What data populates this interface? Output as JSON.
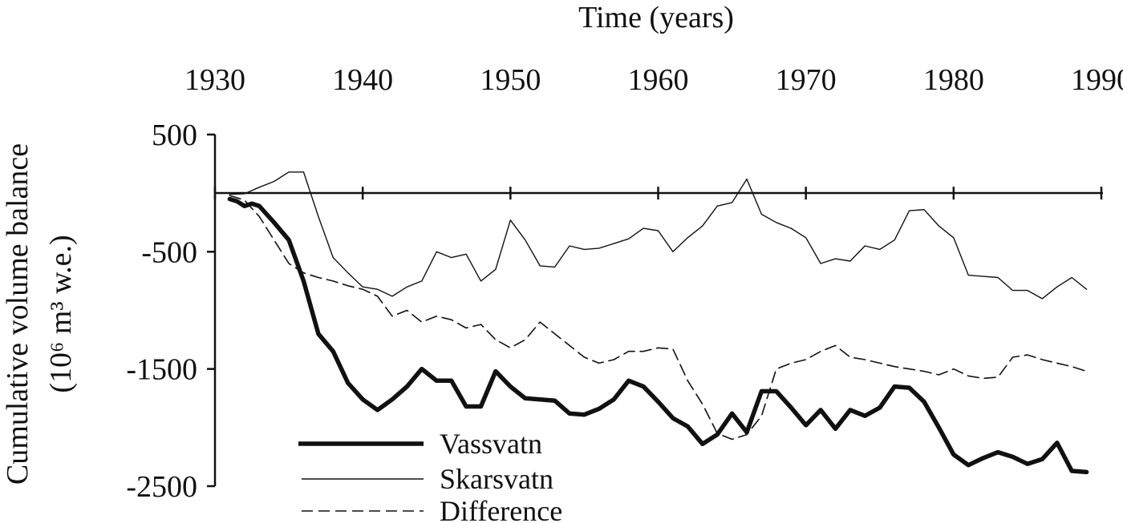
{
  "chart_data": {
    "type": "line",
    "xlabel": "Time (years)",
    "ylabel": "Cumulative volume balance",
    "ylabel_units": "(10⁶ m³ w.e.)",
    "xlim": [
      1930,
      1990
    ],
    "ylim": [
      -2500,
      500
    ],
    "x_ticks": [
      "1930",
      "1940",
      "1950",
      "1960",
      "1970",
      "1980",
      "1990"
    ],
    "y_ticks": [
      "500",
      "-500",
      "-1500",
      "-2500"
    ],
    "x_tick_values": [
      1930,
      1940,
      1950,
      1960,
      1970,
      1980,
      1990
    ],
    "y_tick_values": [
      500,
      -500,
      -1500,
      -2500
    ],
    "legend_position": "bottom-left",
    "colors": {
      "line": "#111111"
    },
    "series": [
      {
        "name": "Vassvatn",
        "style": "thick",
        "x": [
          1931,
          1931.5,
          1932,
          1932.5,
          1933,
          1934,
          1935,
          1936,
          1937,
          1938,
          1939,
          1940,
          1941,
          1942,
          1943,
          1944,
          1945,
          1946,
          1947,
          1948,
          1949,
          1950,
          1951,
          1952,
          1953,
          1954,
          1955,
          1956,
          1957,
          1958,
          1959,
          1960,
          1961,
          1962,
          1963,
          1964,
          1965,
          1966,
          1967,
          1968,
          1969,
          1970,
          1971,
          1972,
          1973,
          1974,
          1975,
          1976,
          1977,
          1978,
          1979,
          1980,
          1981,
          1982,
          1983,
          1984,
          1985,
          1986,
          1987,
          1988,
          1989
        ],
        "values": [
          -50,
          -70,
          -110,
          -90,
          -110,
          -250,
          -400,
          -750,
          -1200,
          -1350,
          -1620,
          -1760,
          -1850,
          -1760,
          -1650,
          -1500,
          -1600,
          -1600,
          -1820,
          -1820,
          -1520,
          -1650,
          -1750,
          -1760,
          -1770,
          -1880,
          -1890,
          -1840,
          -1760,
          -1600,
          -1650,
          -1780,
          -1920,
          -1990,
          -2140,
          -2060,
          -1880,
          -2040,
          -1690,
          -1690,
          -1830,
          -1980,
          -1850,
          -2010,
          -1850,
          -1900,
          -1830,
          -1650,
          -1660,
          -1780,
          -2000,
          -2230,
          -2320,
          -2260,
          -2210,
          -2250,
          -2310,
          -2270,
          -2130,
          -2370,
          -2380
        ]
      },
      {
        "name": "Skarsvatn",
        "style": "thin",
        "x": [
          1931,
          1932,
          1933,
          1934,
          1935,
          1936,
          1937,
          1938,
          1939,
          1940,
          1941,
          1942,
          1943,
          1944,
          1945,
          1946,
          1947,
          1948,
          1949,
          1950,
          1951,
          1952,
          1953,
          1954,
          1955,
          1956,
          1957,
          1958,
          1959,
          1960,
          1961,
          1962,
          1963,
          1964,
          1965,
          1966,
          1967,
          1968,
          1969,
          1970,
          1971,
          1972,
          1973,
          1974,
          1975,
          1976,
          1977,
          1978,
          1979,
          1980,
          1981,
          1982,
          1983,
          1984,
          1985,
          1986,
          1987,
          1988,
          1989
        ],
        "values": [
          -10,
          -5,
          50,
          100,
          180,
          180,
          -200,
          -550,
          -680,
          -800,
          -820,
          -880,
          -800,
          -750,
          -500,
          -550,
          -520,
          -750,
          -650,
          -230,
          -400,
          -620,
          -630,
          -450,
          -480,
          -470,
          -430,
          -390,
          -300,
          -320,
          -500,
          -380,
          -280,
          -110,
          -80,
          120,
          -180,
          -250,
          -300,
          -380,
          -600,
          -560,
          -580,
          -450,
          -480,
          -400,
          -150,
          -140,
          -280,
          -380,
          -700,
          -710,
          -720,
          -830,
          -830,
          -900,
          -800,
          -720,
          -820
        ]
      },
      {
        "name": "Difference",
        "style": "dashed",
        "x": [
          1931,
          1932,
          1933,
          1934,
          1935,
          1936,
          1937,
          1938,
          1939,
          1940,
          1941,
          1942,
          1943,
          1944,
          1945,
          1946,
          1947,
          1948,
          1949,
          1950,
          1951,
          1952,
          1953,
          1954,
          1955,
          1956,
          1957,
          1958,
          1959,
          1960,
          1961,
          1962,
          1963,
          1964,
          1965,
          1966,
          1967,
          1968,
          1969,
          1970,
          1971,
          1972,
          1973,
          1974,
          1975,
          1976,
          1977,
          1978,
          1979,
          1980,
          1981,
          1982,
          1983,
          1984,
          1985,
          1986,
          1987,
          1988,
          1989
        ],
        "values": [
          -20,
          -60,
          -200,
          -400,
          -600,
          -680,
          -720,
          -750,
          -790,
          -820,
          -880,
          -1050,
          -1000,
          -1100,
          -1050,
          -1080,
          -1150,
          -1120,
          -1250,
          -1320,
          -1250,
          -1100,
          -1200,
          -1300,
          -1400,
          -1450,
          -1420,
          -1350,
          -1350,
          -1320,
          -1330,
          -1600,
          -1800,
          -2050,
          -2100,
          -2060,
          -1900,
          -1500,
          -1450,
          -1420,
          -1350,
          -1300,
          -1400,
          -1420,
          -1450,
          -1480,
          -1500,
          -1520,
          -1550,
          -1500,
          -1560,
          -1580,
          -1570,
          -1400,
          -1380,
          -1420,
          -1450,
          -1480,
          -1520
        ]
      }
    ]
  }
}
